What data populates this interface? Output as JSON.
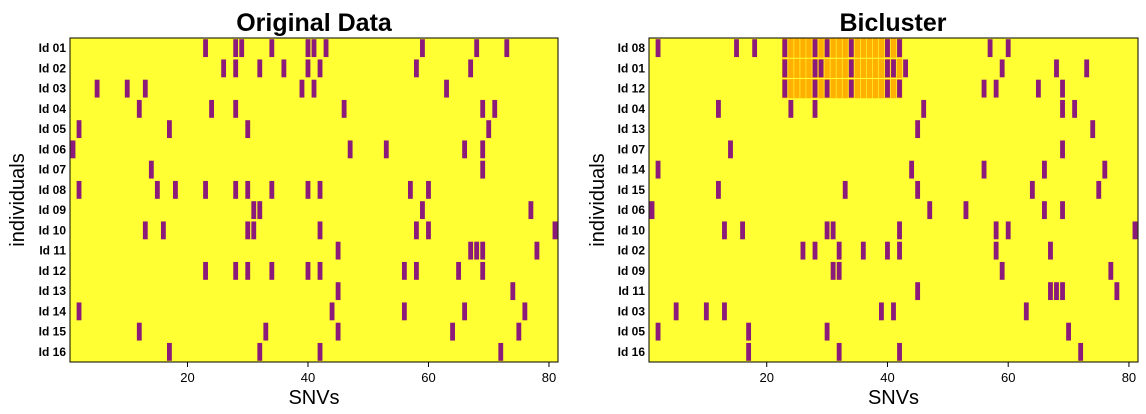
{
  "colors": {
    "background": "#ffff33",
    "snv": "#8b1a7a",
    "bicluster": "#ffb000",
    "frame": "#000000"
  },
  "chart_data": [
    {
      "type": "heatmap",
      "title": "Original Data",
      "xlabel": "SNVs",
      "ylabel": "individuals",
      "xlim": [
        1,
        81
      ],
      "xticks": [
        20,
        40,
        60,
        80
      ],
      "rows": [
        {
          "label": "Id 01",
          "snvs": [
            23,
            28,
            29,
            34,
            40,
            41,
            43,
            59,
            68,
            73
          ]
        },
        {
          "label": "Id 02",
          "snvs": [
            26,
            28,
            32,
            36,
            40,
            42,
            58,
            67
          ]
        },
        {
          "label": "Id 03",
          "snvs": [
            5,
            10,
            13,
            39,
            41,
            63
          ]
        },
        {
          "label": "Id 04",
          "snvs": [
            12,
            24,
            28,
            46,
            69,
            71
          ]
        },
        {
          "label": "Id 05",
          "snvs": [
            2,
            17,
            30,
            70
          ]
        },
        {
          "label": "Id 06",
          "snvs": [
            1,
            47,
            53,
            66,
            69
          ]
        },
        {
          "label": "Id 07",
          "snvs": [
            14,
            69
          ]
        },
        {
          "label": "Id 08",
          "snvs": [
            2,
            15,
            18,
            23,
            28,
            30,
            34,
            40,
            42,
            57,
            60
          ]
        },
        {
          "label": "Id 09",
          "snvs": [
            31,
            32,
            59,
            77
          ]
        },
        {
          "label": "Id 10",
          "snvs": [
            13,
            16,
            30,
            31,
            42,
            58,
            60,
            81
          ]
        },
        {
          "label": "Id 11",
          "snvs": [
            45,
            67,
            68,
            69,
            78
          ]
        },
        {
          "label": "Id 12",
          "snvs": [
            23,
            28,
            30,
            34,
            40,
            42,
            56,
            58,
            65,
            69
          ]
        },
        {
          "label": "Id 13",
          "snvs": [
            45,
            74
          ]
        },
        {
          "label": "Id 14",
          "snvs": [
            2,
            44,
            56,
            66,
            76
          ]
        },
        {
          "label": "Id 15",
          "snvs": [
            12,
            33,
            45,
            64,
            75
          ]
        },
        {
          "label": "Id 16",
          "snvs": [
            17,
            32,
            42,
            72
          ]
        }
      ],
      "highlight": null
    },
    {
      "type": "heatmap",
      "title": "Bicluster",
      "xlabel": "SNVs",
      "ylabel": "individuals",
      "xlim": [
        1,
        81
      ],
      "xticks": [
        20,
        40,
        60,
        80
      ],
      "rows": [
        {
          "label": "Id 08",
          "snvs": [
            2,
            15,
            18,
            23,
            28,
            30,
            34,
            40,
            42,
            57,
            60
          ]
        },
        {
          "label": "Id 01",
          "snvs": [
            23,
            28,
            29,
            34,
            40,
            41,
            43,
            59,
            68,
            73
          ]
        },
        {
          "label": "Id 12",
          "snvs": [
            23,
            28,
            30,
            34,
            40,
            42,
            56,
            58,
            65,
            69
          ]
        },
        {
          "label": "Id 04",
          "snvs": [
            12,
            24,
            28,
            46,
            69,
            71
          ]
        },
        {
          "label": "Id 13",
          "snvs": [
            45,
            74
          ]
        },
        {
          "label": "Id 07",
          "snvs": [
            14,
            69
          ]
        },
        {
          "label": "Id 14",
          "snvs": [
            2,
            44,
            56,
            66,
            76
          ]
        },
        {
          "label": "Id 15",
          "snvs": [
            12,
            33,
            45,
            64,
            75
          ]
        },
        {
          "label": "Id 06",
          "snvs": [
            1,
            47,
            53,
            66,
            69
          ]
        },
        {
          "label": "Id 10",
          "snvs": [
            13,
            16,
            30,
            31,
            42,
            58,
            60,
            81
          ]
        },
        {
          "label": "Id 02",
          "snvs": [
            26,
            28,
            32,
            36,
            40,
            42,
            58,
            67
          ]
        },
        {
          "label": "Id 09",
          "snvs": [
            31,
            32,
            59,
            77
          ]
        },
        {
          "label": "Id 11",
          "snvs": [
            45,
            67,
            68,
            69,
            78
          ]
        },
        {
          "label": "Id 03",
          "snvs": [
            5,
            10,
            13,
            39,
            41,
            63
          ]
        },
        {
          "label": "Id 05",
          "snvs": [
            2,
            17,
            30,
            70
          ]
        },
        {
          "label": "Id 16",
          "snvs": [
            17,
            32,
            42,
            72
          ]
        }
      ],
      "highlight": {
        "rows": [
          0,
          1,
          2
        ],
        "snvs": [
          23,
          24,
          25,
          26,
          27,
          28,
          29,
          30,
          31,
          32,
          33,
          34,
          35,
          36,
          37,
          38,
          39,
          40,
          41,
          42
        ]
      }
    }
  ]
}
